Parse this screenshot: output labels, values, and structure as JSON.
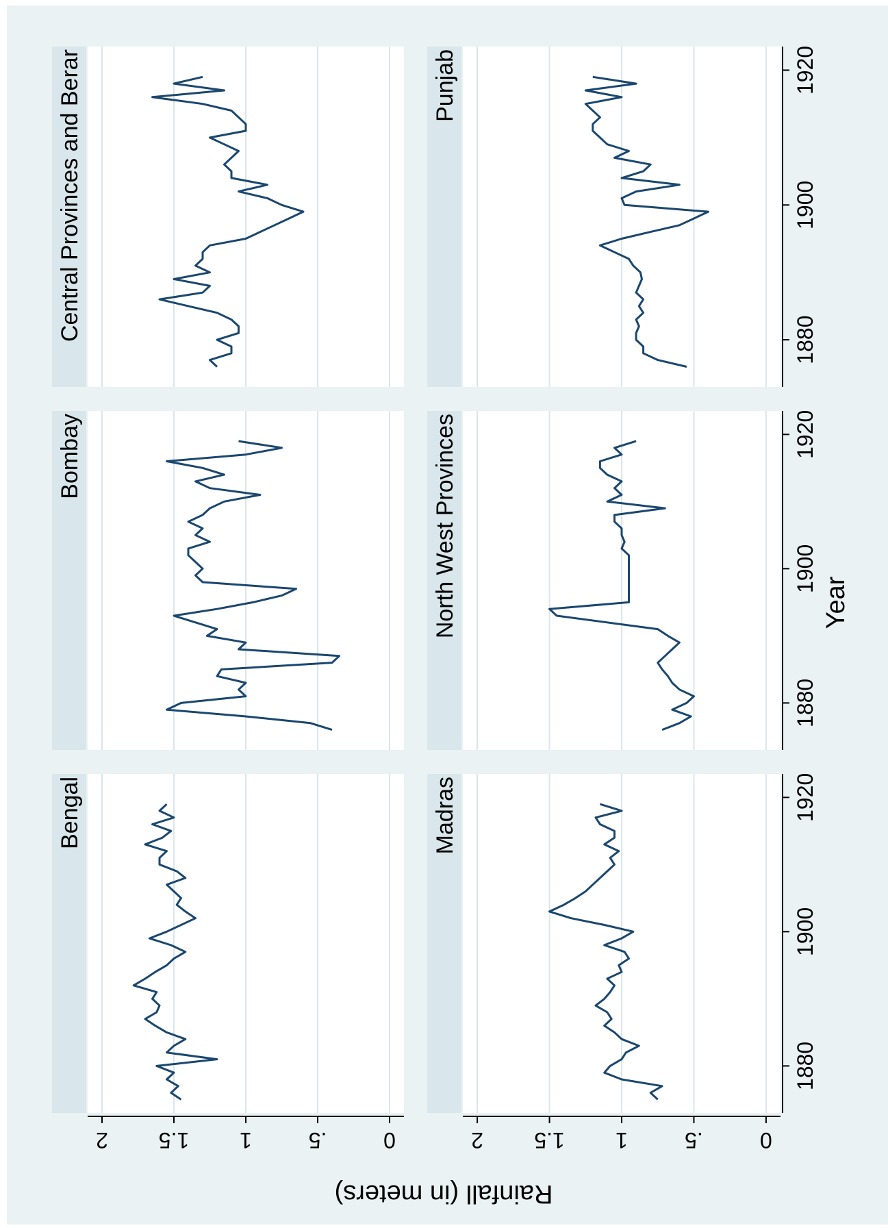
{
  "chart_data": {
    "type": "line",
    "layout": "2x3 small multiples, rotated 90 degrees",
    "xlabel": "Year",
    "ylabel": "Rainfall (in meters)",
    "xticks": [
      1880,
      1900,
      1920
    ],
    "yticks": [
      {
        "value": 0,
        "label": "0"
      },
      {
        "value": 0.5,
        "label": ".5"
      },
      {
        "value": 1,
        "label": "1"
      },
      {
        "value": 1.5,
        "label": "1.5"
      },
      {
        "value": 2,
        "label": "2"
      }
    ],
    "xlim": [
      1873,
      1923.5
    ],
    "ylim": [
      -0.1,
      2.1
    ],
    "grid": true,
    "colors": {
      "line": "#1a476f",
      "outer_background": "#eaf2f3",
      "panel_background": "#ffffff",
      "strip_background": "#d9e6eb",
      "grid": "#d9e6eb"
    },
    "panels": [
      {
        "name": "Bengal",
        "years": [
          1875,
          1876,
          1877,
          1878,
          1879,
          1880,
          1881,
          1882,
          1883,
          1884,
          1885,
          1886,
          1887,
          1888,
          1889,
          1890,
          1891,
          1892,
          1893,
          1894,
          1895,
          1896,
          1897,
          1898,
          1899,
          1900,
          1901,
          1902,
          1903,
          1904,
          1905,
          1906,
          1907,
          1908,
          1909,
          1910,
          1911,
          1912,
          1913,
          1914,
          1915,
          1916,
          1917,
          1918,
          1919
        ],
        "values": [
          1.45,
          1.52,
          1.47,
          1.55,
          1.5,
          1.62,
          1.2,
          1.55,
          1.5,
          1.42,
          1.55,
          1.63,
          1.7,
          1.62,
          1.6,
          1.65,
          1.62,
          1.78,
          1.7,
          1.63,
          1.55,
          1.5,
          1.42,
          1.52,
          1.67,
          1.55,
          1.45,
          1.35,
          1.42,
          1.48,
          1.45,
          1.5,
          1.55,
          1.42,
          1.48,
          1.6,
          1.6,
          1.55,
          1.7,
          1.58,
          1.52,
          1.65,
          1.5,
          1.6,
          1.55
        ]
      },
      {
        "name": "Bombay",
        "years": [
          1876,
          1877,
          1878,
          1879,
          1880,
          1881,
          1882,
          1883,
          1884,
          1885,
          1886,
          1887,
          1888,
          1889,
          1890,
          1891,
          1892,
          1893,
          1894,
          1895,
          1896,
          1897,
          1898,
          1899,
          1900,
          1901,
          1902,
          1903,
          1904,
          1905,
          1906,
          1907,
          1908,
          1909,
          1910,
          1911,
          1912,
          1913,
          1914,
          1915,
          1916,
          1917,
          1918,
          1919
        ],
        "values": [
          0.4,
          0.55,
          1.0,
          1.55,
          1.45,
          1.0,
          1.05,
          1.0,
          1.2,
          1.17,
          0.4,
          0.35,
          1.05,
          1.0,
          1.27,
          1.2,
          1.35,
          1.5,
          1.2,
          0.95,
          0.75,
          0.65,
          1.3,
          1.35,
          1.3,
          1.35,
          1.4,
          1.4,
          1.25,
          1.35,
          1.3,
          1.4,
          1.3,
          1.25,
          1.15,
          0.9,
          1.25,
          1.35,
          1.15,
          1.3,
          1.55,
          1.0,
          0.75,
          1.05
        ]
      },
      {
        "name": "Central Provinces and Berar",
        "years": [
          1876,
          1877,
          1878,
          1879,
          1880,
          1881,
          1882,
          1883,
          1884,
          1885,
          1886,
          1887,
          1888,
          1889,
          1890,
          1891,
          1892,
          1893,
          1894,
          1895,
          1896,
          1897,
          1898,
          1899,
          1900,
          1901,
          1902,
          1903,
          1904,
          1905,
          1906,
          1907,
          1908,
          1909,
          1910,
          1911,
          1912,
          1913,
          1914,
          1915,
          1916,
          1917,
          1918,
          1919
        ],
        "values": [
          1.2,
          1.25,
          1.1,
          1.1,
          1.2,
          1.05,
          1.05,
          1.1,
          1.2,
          1.4,
          1.6,
          1.3,
          1.25,
          1.5,
          1.25,
          1.35,
          1.3,
          1.3,
          1.25,
          1.0,
          0.9,
          0.8,
          0.7,
          0.6,
          0.75,
          0.85,
          1.05,
          0.85,
          1.1,
          1.1,
          1.15,
          1.1,
          1.05,
          1.15,
          1.25,
          1.0,
          1.0,
          1.05,
          1.1,
          1.3,
          1.65,
          1.15,
          1.5,
          1.3
        ]
      },
      {
        "name": "Madras",
        "years": [
          1875,
          1876,
          1877,
          1878,
          1879,
          1880,
          1881,
          1882,
          1883,
          1884,
          1885,
          1886,
          1887,
          1888,
          1889,
          1890,
          1891,
          1892,
          1893,
          1894,
          1895,
          1896,
          1897,
          1898,
          1899,
          1900,
          1901,
          1902,
          1903,
          1904,
          1905,
          1906,
          1907,
          1908,
          1909,
          1910,
          1911,
          1912,
          1913,
          1914,
          1915,
          1916,
          1917,
          1918,
          1919
        ],
        "values": [
          0.75,
          0.8,
          0.72,
          1.0,
          1.12,
          1.08,
          1.0,
          0.97,
          0.88,
          1.0,
          1.05,
          1.12,
          1.07,
          1.1,
          1.18,
          1.12,
          1.08,
          1.05,
          1.1,
          1.0,
          1.02,
          0.95,
          0.98,
          1.12,
          1.0,
          0.92,
          1.12,
          1.35,
          1.5,
          1.4,
          1.32,
          1.25,
          1.2,
          1.15,
          1.1,
          1.05,
          1.08,
          1.02,
          1.12,
          1.05,
          1.05,
          1.15,
          1.18,
          1.0,
          1.15
        ]
      },
      {
        "name": "North West Provinces",
        "years": [
          1876,
          1877,
          1878,
          1879,
          1880,
          1881,
          1882,
          1883,
          1884,
          1885,
          1886,
          1887,
          1888,
          1889,
          1890,
          1891,
          1892,
          1893,
          1894,
          1895,
          1896,
          1897,
          1898,
          1899,
          1900,
          1901,
          1902,
          1903,
          1904,
          1905,
          1906,
          1907,
          1908,
          1909,
          1910,
          1911,
          1912,
          1913,
          1914,
          1915,
          1916,
          1917,
          1918,
          1919
        ],
        "values": [
          0.72,
          0.6,
          0.52,
          0.65,
          0.55,
          0.5,
          0.6,
          0.65,
          0.68,
          0.72,
          0.75,
          0.7,
          0.65,
          0.6,
          0.68,
          0.75,
          1.1,
          1.45,
          1.5,
          0.95,
          0.95,
          0.95,
          0.95,
          0.95,
          0.95,
          0.95,
          0.95,
          1.0,
          0.98,
          1.0,
          1.0,
          1.05,
          1.05,
          0.7,
          1.1,
          1.0,
          1.05,
          1.0,
          1.1,
          1.15,
          1.15,
          1.0,
          1.05,
          0.9
        ]
      },
      {
        "name": "Punjab",
        "years": [
          1876,
          1877,
          1878,
          1879,
          1880,
          1881,
          1882,
          1883,
          1884,
          1885,
          1886,
          1887,
          1888,
          1889,
          1890,
          1891,
          1892,
          1893,
          1894,
          1895,
          1896,
          1897,
          1898,
          1899,
          1900,
          1901,
          1902,
          1903,
          1904,
          1905,
          1906,
          1907,
          1908,
          1909,
          1910,
          1911,
          1912,
          1913,
          1914,
          1915,
          1916,
          1917,
          1918,
          1919
        ],
        "values": [
          0.55,
          0.75,
          0.85,
          0.85,
          0.9,
          0.9,
          0.88,
          0.9,
          0.85,
          0.88,
          0.85,
          0.9,
          0.88,
          0.86,
          0.87,
          0.92,
          0.95,
          1.05,
          1.15,
          1.0,
          0.8,
          0.6,
          0.5,
          0.4,
          0.98,
          1.0,
          0.9,
          0.6,
          1.0,
          0.85,
          0.8,
          1.05,
          0.95,
          1.1,
          1.15,
          1.2,
          1.2,
          1.15,
          1.2,
          1.25,
          1.0,
          1.25,
          0.9,
          1.2
        ]
      }
    ]
  }
}
